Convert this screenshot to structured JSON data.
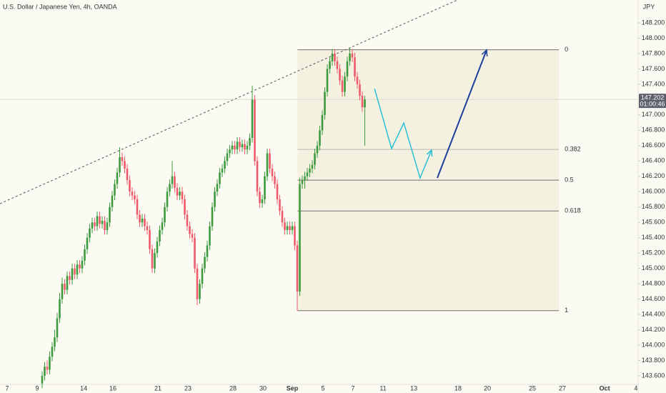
{
  "chart_data": {
    "type": "candlestick",
    "title": "U.S. Dollar / Japanese Yen, 4h, OANDA",
    "currency": "JPY",
    "up_color": "#3d9a3d",
    "down_color": "#ef5a6a",
    "ohlc": [
      [
        143.5,
        143.66,
        143.44,
        143.6
      ],
      [
        143.6,
        143.78,
        143.54,
        143.72
      ],
      [
        143.72,
        143.8,
        143.62,
        143.68
      ],
      [
        143.68,
        143.92,
        143.62,
        143.85
      ],
      [
        143.85,
        144.04,
        143.79,
        143.98
      ],
      [
        143.98,
        144.2,
        143.92,
        144.1
      ],
      [
        144.1,
        144.42,
        144.04,
        144.35
      ],
      [
        144.35,
        144.68,
        144.29,
        144.6
      ],
      [
        144.6,
        144.88,
        144.54,
        144.8
      ],
      [
        144.8,
        144.86,
        144.66,
        144.72
      ],
      [
        144.72,
        144.96,
        144.66,
        144.9
      ],
      [
        144.9,
        144.96,
        144.79,
        144.85
      ],
      [
        144.85,
        145.06,
        144.79,
        145.0
      ],
      [
        145.0,
        145.06,
        144.86,
        144.92
      ],
      [
        144.92,
        145.11,
        144.86,
        145.05
      ],
      [
        145.05,
        145.11,
        144.94,
        145.0
      ],
      [
        145.0,
        145.16,
        144.94,
        145.1
      ],
      [
        145.1,
        145.31,
        145.04,
        145.25
      ],
      [
        145.25,
        145.46,
        145.19,
        145.4
      ],
      [
        145.4,
        145.58,
        145.34,
        145.52
      ],
      [
        145.52,
        145.66,
        145.46,
        145.6
      ],
      [
        145.6,
        145.66,
        145.49,
        145.55
      ],
      [
        145.55,
        145.74,
        145.49,
        145.68
      ],
      [
        145.68,
        145.74,
        145.52,
        145.58
      ],
      [
        145.58,
        145.68,
        145.52,
        145.62
      ],
      [
        145.62,
        145.68,
        145.44,
        145.5
      ],
      [
        145.5,
        145.66,
        145.44,
        145.6
      ],
      [
        145.6,
        145.86,
        145.54,
        145.8
      ],
      [
        145.8,
        146.01,
        145.74,
        145.95
      ],
      [
        145.95,
        146.16,
        145.89,
        146.1
      ],
      [
        146.1,
        146.31,
        146.04,
        146.25
      ],
      [
        146.25,
        146.58,
        146.19,
        146.45
      ],
      [
        146.45,
        146.51,
        146.34,
        146.4
      ],
      [
        146.4,
        146.46,
        146.24,
        146.3
      ],
      [
        146.3,
        146.36,
        146.09,
        146.15
      ],
      [
        146.15,
        146.21,
        145.94,
        146.0
      ],
      [
        146.0,
        146.06,
        145.89,
        145.95
      ],
      [
        145.95,
        146.01,
        145.84,
        145.9
      ],
      [
        145.9,
        145.96,
        145.64,
        145.7
      ],
      [
        145.7,
        145.76,
        145.54,
        145.6
      ],
      [
        145.6,
        145.71,
        145.54,
        145.65
      ],
      [
        145.65,
        145.71,
        145.49,
        145.55
      ],
      [
        145.55,
        145.61,
        145.44,
        145.5
      ],
      [
        145.5,
        145.56,
        145.19,
        145.25
      ],
      [
        145.25,
        145.31,
        144.94,
        145.0
      ],
      [
        145.0,
        145.26,
        144.94,
        145.2
      ],
      [
        145.2,
        145.41,
        145.14,
        145.35
      ],
      [
        145.35,
        145.56,
        145.29,
        145.5
      ],
      [
        145.5,
        145.66,
        145.44,
        145.6
      ],
      [
        145.6,
        145.86,
        145.54,
        145.8
      ],
      [
        145.8,
        146.06,
        145.74,
        146.0
      ],
      [
        146.0,
        146.16,
        145.94,
        146.1
      ],
      [
        146.1,
        146.4,
        146.04,
        146.2
      ],
      [
        146.2,
        146.26,
        145.99,
        146.05
      ],
      [
        146.05,
        146.11,
        145.89,
        145.95
      ],
      [
        145.95,
        146.06,
        145.89,
        146.0
      ],
      [
        146.0,
        146.06,
        145.84,
        145.9
      ],
      [
        145.9,
        145.96,
        145.64,
        145.7
      ],
      [
        145.7,
        145.76,
        145.49,
        145.55
      ],
      [
        145.55,
        145.61,
        145.39,
        145.45
      ],
      [
        145.45,
        145.51,
        145.34,
        145.4
      ],
      [
        145.4,
        145.46,
        144.94,
        145.0
      ],
      [
        145.0,
        145.06,
        144.52,
        144.6
      ],
      [
        144.6,
        144.86,
        144.54,
        144.8
      ],
      [
        144.8,
        145.06,
        144.74,
        145.0
      ],
      [
        145.0,
        145.21,
        144.94,
        145.15
      ],
      [
        145.15,
        145.36,
        145.09,
        145.3
      ],
      [
        145.3,
        145.61,
        145.24,
        145.55
      ],
      [
        145.55,
        145.86,
        145.49,
        145.8
      ],
      [
        145.8,
        146.06,
        145.74,
        146.0
      ],
      [
        146.0,
        146.16,
        145.94,
        146.1
      ],
      [
        146.1,
        146.31,
        146.04,
        146.25
      ],
      [
        146.25,
        146.36,
        146.19,
        146.3
      ],
      [
        146.3,
        146.46,
        146.24,
        146.4
      ],
      [
        146.4,
        146.56,
        146.34,
        146.5
      ],
      [
        146.5,
        146.61,
        146.44,
        146.55
      ],
      [
        146.55,
        146.66,
        146.49,
        146.6
      ],
      [
        146.6,
        146.66,
        146.49,
        146.55
      ],
      [
        146.55,
        146.71,
        146.49,
        146.65
      ],
      [
        146.65,
        146.71,
        146.52,
        146.58
      ],
      [
        146.58,
        146.68,
        146.52,
        146.62
      ],
      [
        146.62,
        146.68,
        146.49,
        146.55
      ],
      [
        146.55,
        146.66,
        146.49,
        146.6
      ],
      [
        146.6,
        146.76,
        146.54,
        146.7
      ],
      [
        146.7,
        147.38,
        146.64,
        147.2
      ],
      [
        147.2,
        147.26,
        146.34,
        146.4
      ],
      [
        146.4,
        146.46,
        145.94,
        146.0
      ],
      [
        146.0,
        146.06,
        145.79,
        145.85
      ],
      [
        145.85,
        145.96,
        145.79,
        145.9
      ],
      [
        145.9,
        146.26,
        145.84,
        146.2
      ],
      [
        146.2,
        146.56,
        146.14,
        146.5
      ],
      [
        146.5,
        146.56,
        146.24,
        146.3
      ],
      [
        146.3,
        146.36,
        146.14,
        146.2
      ],
      [
        146.2,
        146.26,
        146.04,
        146.1
      ],
      [
        146.1,
        146.16,
        145.84,
        145.9
      ],
      [
        145.9,
        145.96,
        145.69,
        145.75
      ],
      [
        145.75,
        145.81,
        145.54,
        145.6
      ],
      [
        145.6,
        145.66,
        145.44,
        145.5
      ],
      [
        145.5,
        145.61,
        145.44,
        145.55
      ],
      [
        145.55,
        145.61,
        145.44,
        145.5
      ],
      [
        145.5,
        145.61,
        145.44,
        145.55
      ],
      [
        145.55,
        145.61,
        145.24,
        145.3
      ],
      [
        145.3,
        145.36,
        144.45,
        144.7
      ],
      [
        144.7,
        146.18,
        144.64,
        146.1
      ],
      [
        146.1,
        146.21,
        146.04,
        146.15
      ],
      [
        146.15,
        146.26,
        146.04,
        146.2
      ],
      [
        146.2,
        146.31,
        146.14,
        146.25
      ],
      [
        146.25,
        146.36,
        146.19,
        146.3
      ],
      [
        146.3,
        146.41,
        146.24,
        146.35
      ],
      [
        146.35,
        146.56,
        146.29,
        146.5
      ],
      [
        146.5,
        146.66,
        146.44,
        146.6
      ],
      [
        146.6,
        146.86,
        146.54,
        146.8
      ],
      [
        146.8,
        147.06,
        146.74,
        147.0
      ],
      [
        147.0,
        147.36,
        146.94,
        147.3
      ],
      [
        147.3,
        147.66,
        147.24,
        147.6
      ],
      [
        147.6,
        147.76,
        147.54,
        147.7
      ],
      [
        147.7,
        147.86,
        147.64,
        147.8
      ],
      [
        147.8,
        147.86,
        147.64,
        147.7
      ],
      [
        147.7,
        147.76,
        147.54,
        147.6
      ],
      [
        147.6,
        147.66,
        147.39,
        147.45
      ],
      [
        147.45,
        147.51,
        147.24,
        147.3
      ],
      [
        147.3,
        147.56,
        147.24,
        147.5
      ],
      [
        147.5,
        147.76,
        147.44,
        147.7
      ],
      [
        147.7,
        147.88,
        147.64,
        147.8
      ],
      [
        147.8,
        147.86,
        147.69,
        147.75
      ],
      [
        147.75,
        147.81,
        147.44,
        147.5
      ],
      [
        147.5,
        147.56,
        147.34,
        147.4
      ],
      [
        147.4,
        147.46,
        147.19,
        147.25
      ],
      [
        147.25,
        147.31,
        147.04,
        147.1
      ],
      [
        147.1,
        147.25,
        146.6,
        147.202
      ]
    ],
    "last_price": {
      "value": 147.202,
      "label": "147.202"
    },
    "countdown": "01:00:46",
    "xlim": [
      -16.857,
      238.286
    ],
    "ylim": [
      143.488,
      148.498
    ],
    "xticks": [
      {
        "value": -14,
        "label": "7"
      },
      {
        "value": -2,
        "label": "9"
      },
      {
        "value": 16.6,
        "label": "14"
      },
      {
        "value": 28.3,
        "label": "16"
      },
      {
        "value": 46.3,
        "label": "21"
      },
      {
        "value": 58.3,
        "label": "23"
      },
      {
        "value": 76.3,
        "label": "28"
      },
      {
        "value": 88.3,
        "label": "30"
      },
      {
        "value": 100,
        "label": "Sep"
      },
      {
        "value": 112.3,
        "label": "5"
      },
      {
        "value": 124.3,
        "label": "7"
      },
      {
        "value": 136.3,
        "label": "11"
      },
      {
        "value": 148.6,
        "label": "13"
      },
      {
        "value": 166.3,
        "label": "18"
      },
      {
        "value": 178,
        "label": "20"
      },
      {
        "value": 196,
        "label": "25"
      },
      {
        "value": 208,
        "label": "27"
      },
      {
        "value": 224.9,
        "label": "Oct"
      },
      {
        "value": 237.4,
        "label": "4"
      }
    ],
    "yticks": [
      {
        "value": 148.2,
        "label": "148.200"
      },
      {
        "value": 148.0,
        "label": "148.000"
      },
      {
        "value": 147.8,
        "label": "147.800"
      },
      {
        "value": 147.6,
        "label": "147.600"
      },
      {
        "value": 147.4,
        "label": "147.400"
      },
      {
        "value": 147.0,
        "label": "147.000"
      },
      {
        "value": 146.8,
        "label": "146.800"
      },
      {
        "value": 146.6,
        "label": "146.600"
      },
      {
        "value": 146.4,
        "label": "146.400"
      },
      {
        "value": 146.2,
        "label": "146.200"
      },
      {
        "value": 146.0,
        "label": "146.000"
      },
      {
        "value": 145.8,
        "label": "145.800"
      },
      {
        "value": 145.6,
        "label": "145.600"
      },
      {
        "value": 145.4,
        "label": "145.400"
      },
      {
        "value": 145.2,
        "label": "145.200"
      },
      {
        "value": 145.0,
        "label": "145.000"
      },
      {
        "value": 144.8,
        "label": "144.800"
      },
      {
        "value": 144.6,
        "label": "144.600"
      },
      {
        "value": 144.4,
        "label": "144.400"
      },
      {
        "value": 144.2,
        "label": "144.200"
      },
      {
        "value": 144.0,
        "label": "144.000"
      },
      {
        "value": 143.8,
        "label": "143.800"
      },
      {
        "value": 143.6,
        "label": "143.600"
      }
    ],
    "fib": {
      "x": [
        102.1,
        206.6
      ],
      "levels": [
        {
          "ratio": 0,
          "price": 147.85
        },
        {
          "ratio": 0.382,
          "price": 146.551
        },
        {
          "ratio": 0.5,
          "price": 146.15
        },
        {
          "ratio": 0.618,
          "price": 145.749
        },
        {
          "ratio": 1,
          "price": 144.45
        }
      ]
    },
    "trendline": {
      "x": [
        -16.86,
        166
      ],
      "y": [
        145.844,
        148.498
      ]
    },
    "projection": {
      "color": "#29c0d6",
      "x": [
        132.9,
        139.7,
        144.6,
        151.1,
        155.7
      ],
      "y": [
        147.343,
        146.561,
        146.896,
        146.179,
        146.542
      ]
    },
    "arrow": {
      "color": "#1e3f9c",
      "x": [
        158.0,
        177.7
      ],
      "y": [
        146.179,
        147.846
      ]
    }
  }
}
